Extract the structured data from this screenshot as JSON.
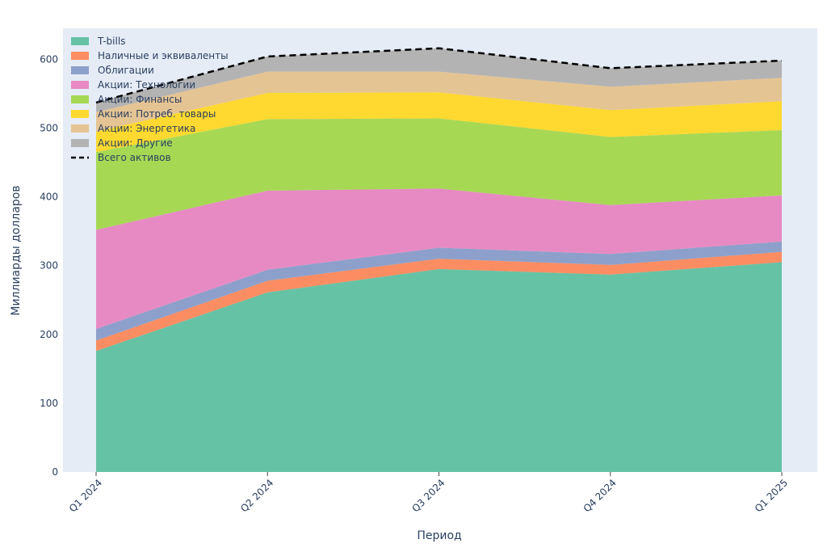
{
  "chart_data": {
    "type": "area",
    "stacked": true,
    "categories": [
      "Q1 2024",
      "Q2 2024",
      "Q3 2024",
      "Q4 2024",
      "Q1 2025"
    ],
    "xlabel": "Период",
    "ylabel": "Миллиарды долларов",
    "ylim": [
      0,
      645
    ],
    "yticks": [
      0,
      100,
      200,
      300,
      400,
      500,
      600
    ],
    "grid": false,
    "legend_position": "top-left",
    "series": [
      {
        "name": "T-bills",
        "color": "#66c2a5",
        "values": [
          176,
          261,
          295,
          287,
          305
        ]
      },
      {
        "name": "Наличные и эквиваленты",
        "color": "#fc8d62",
        "values": [
          15,
          17,
          15,
          14,
          15
        ]
      },
      {
        "name": "Облигации",
        "color": "#8da0cb",
        "values": [
          17,
          16,
          16,
          16,
          15
        ]
      },
      {
        "name": "Акции: Технологии",
        "color": "#e78ac3",
        "values": [
          144,
          115,
          86,
          71,
          67
        ]
      },
      {
        "name": "Акции: Финансы",
        "color": "#a6d854",
        "values": [
          113,
          104,
          102,
          99,
          95
        ]
      },
      {
        "name": "Акции: Потреб. товары",
        "color": "#ffd92f",
        "values": [
          30,
          38,
          38,
          39,
          42
        ]
      },
      {
        "name": "Акции: Энергетика",
        "color": "#e5c494",
        "values": [
          28,
          31,
          30,
          34,
          34
        ]
      },
      {
        "name": "Акции: Другие",
        "color": "#b3b3b3",
        "values": [
          14,
          22,
          34,
          27,
          25
        ]
      }
    ],
    "total": {
      "name": "Всего активов",
      "color": "#000000",
      "values": [
        537,
        604,
        616,
        587,
        598
      ]
    }
  }
}
